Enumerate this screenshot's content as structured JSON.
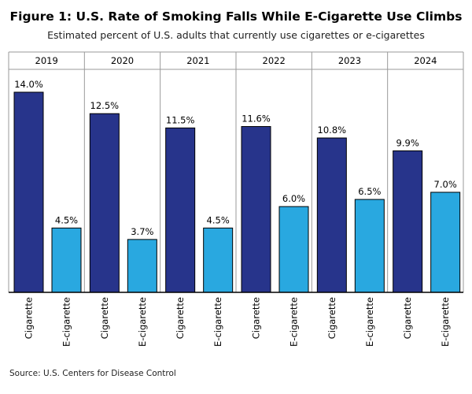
{
  "title": "Figure 1: U.S. Rate of Smoking Falls While E-Cigarette Use Climbs",
  "subtitle": "Estimated percent of U.S. adults that currently use cigarettes or e-cigarettes",
  "source": "Source: U.S. Centers for Disease Control",
  "colors": {
    "cigarette": "#27348b",
    "ecigarette": "#29a8e0",
    "border": "#000000"
  },
  "chart_data": {
    "type": "bar",
    "categories": [
      "2019",
      "2020",
      "2021",
      "2022",
      "2023",
      "2024"
    ],
    "series": [
      {
        "name": "Cigarette",
        "values": [
          14.0,
          12.5,
          11.5,
          11.6,
          10.8,
          9.9
        ],
        "labels": [
          "14.0%",
          "12.5%",
          "11.5%",
          "11.6%",
          "10.8%",
          "9.9%"
        ]
      },
      {
        "name": "E-cigarette",
        "values": [
          4.5,
          3.7,
          4.5,
          6.0,
          6.5,
          7.0
        ],
        "labels": [
          "4.5%",
          "3.7%",
          "4.5%",
          "6.0%",
          "6.5%",
          "7.0%"
        ]
      }
    ],
    "ylim": [
      0,
      14.0
    ],
    "grid": false,
    "legend": "none"
  }
}
